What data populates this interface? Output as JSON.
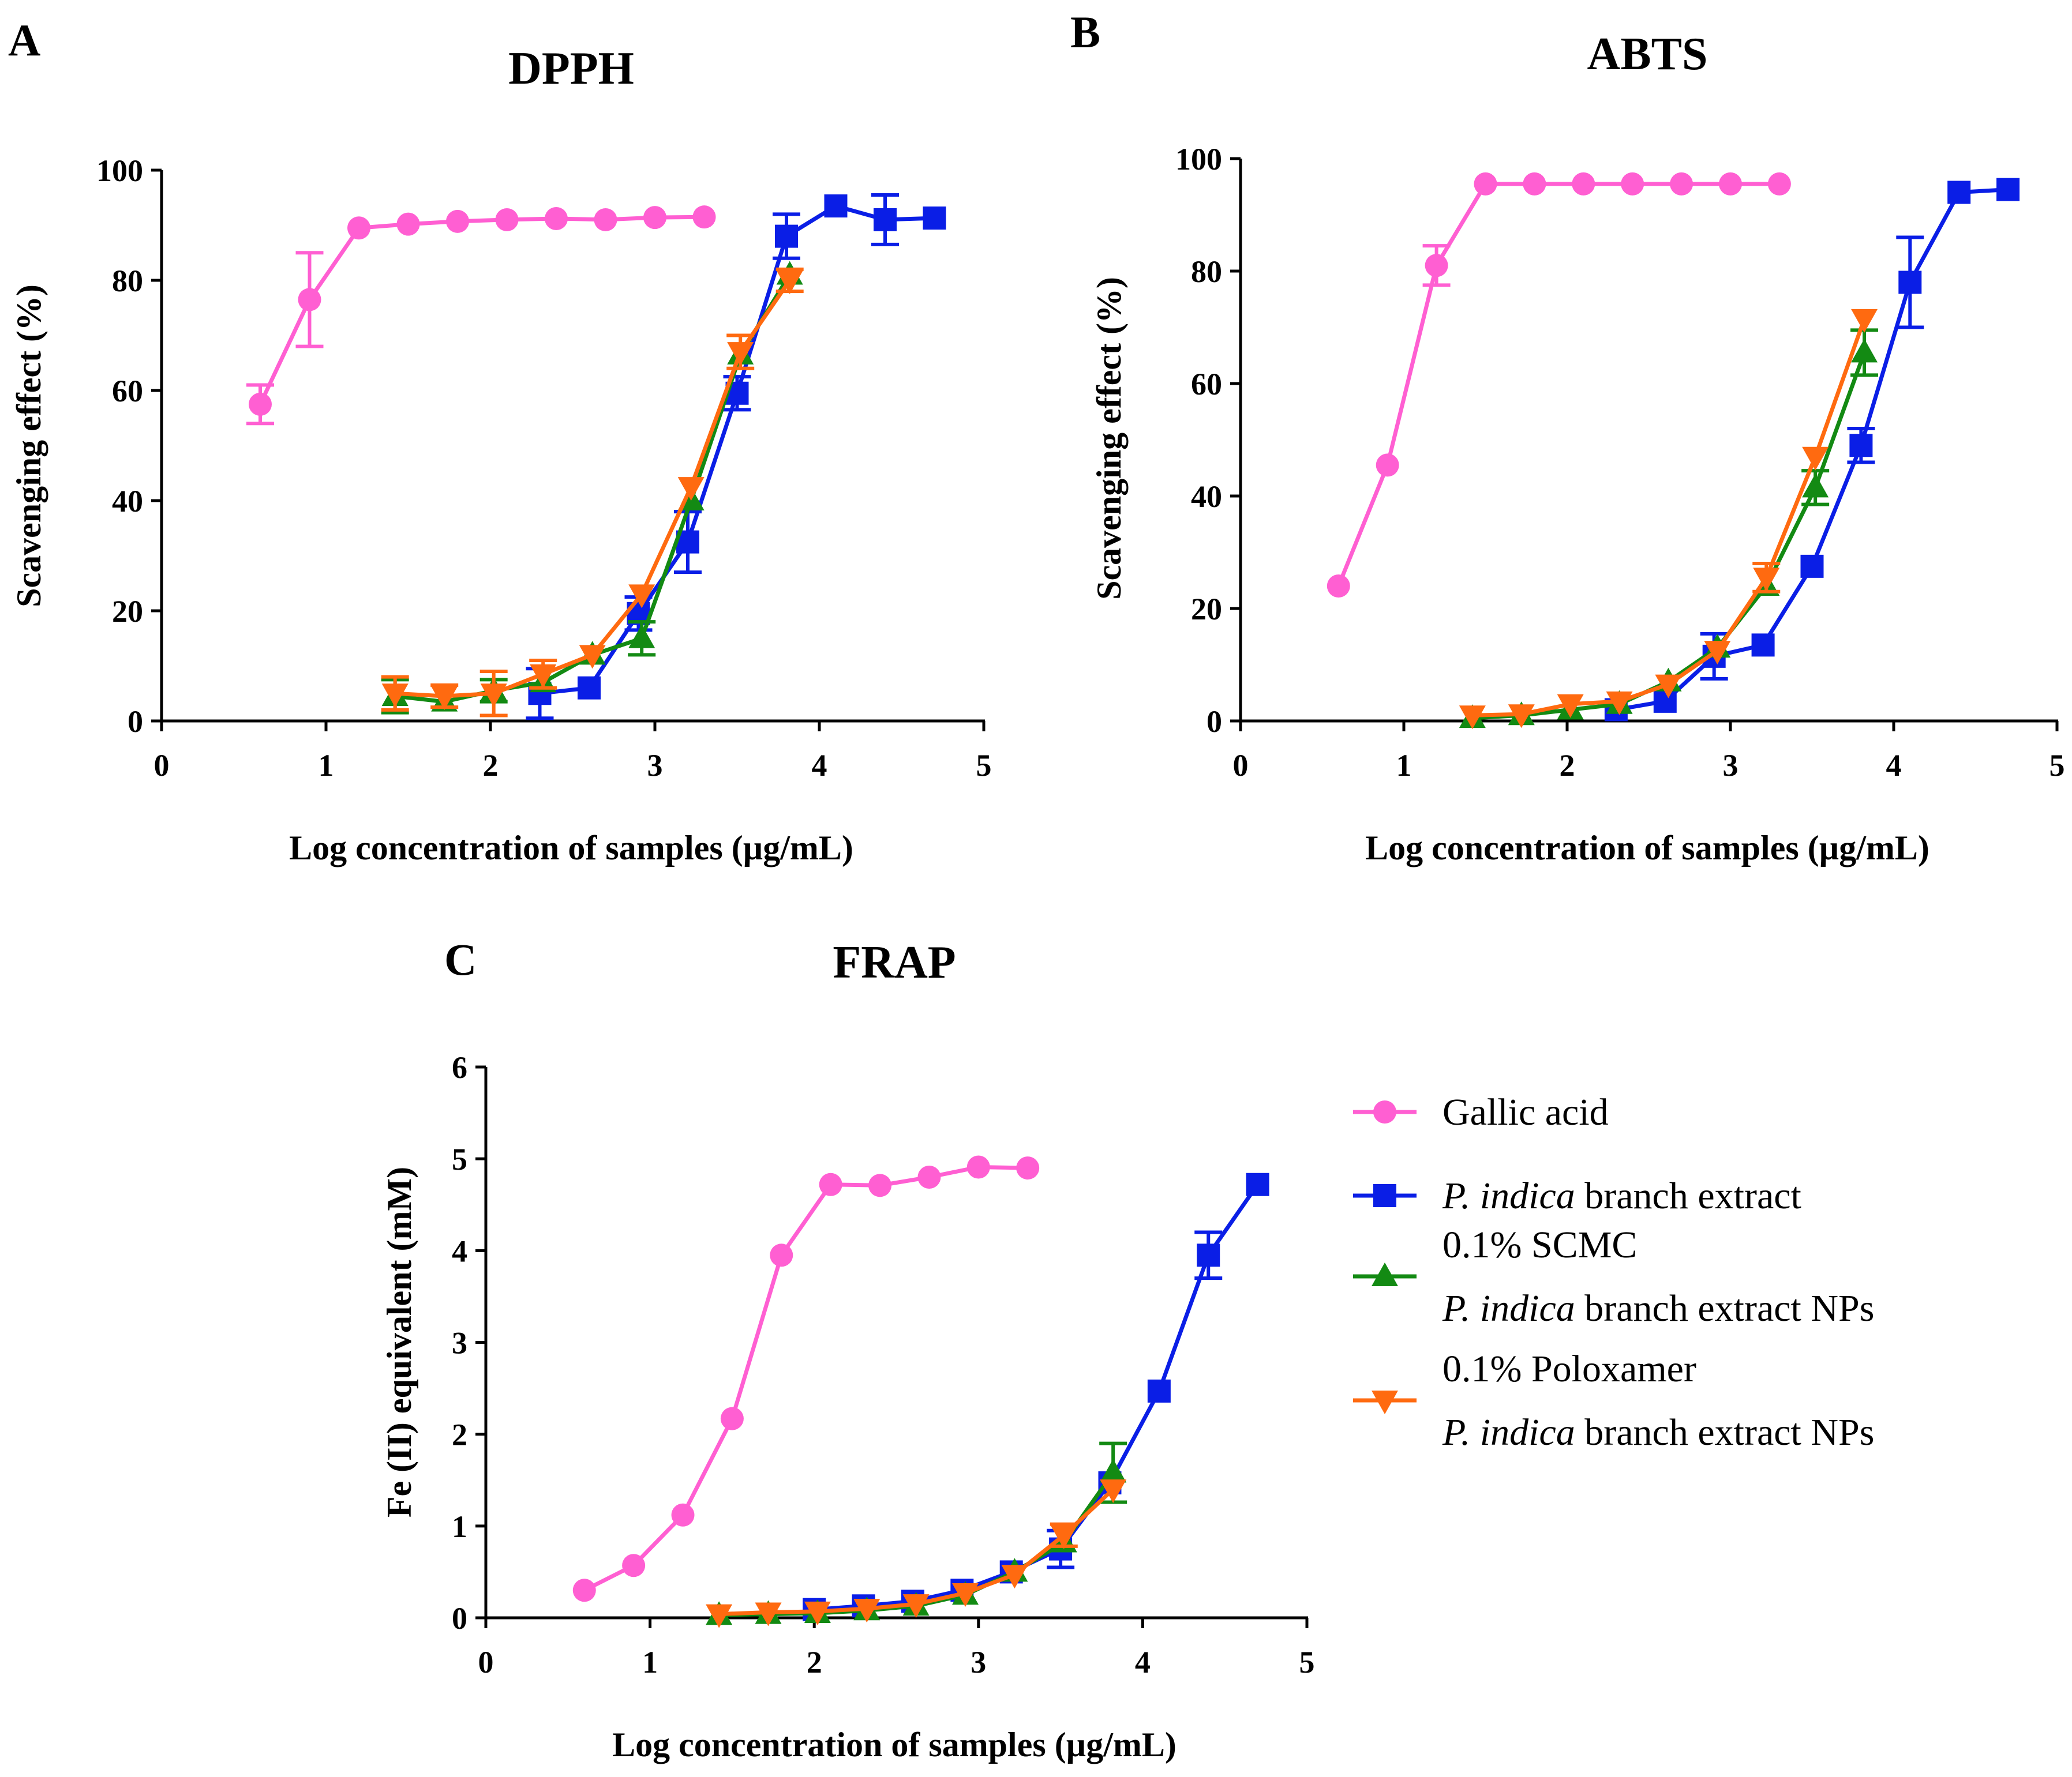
{
  "series_styles": [
    {
      "name": "Gallic acid",
      "color": "#ff5fd2",
      "marker": "circle"
    },
    {
      "name": "P. indica branch extract",
      "color": "#0a1ee6",
      "marker": "square"
    },
    {
      "name": "0.1% SCMC P. indica branch extract NPs",
      "color": "#138a13",
      "marker": "triangle-up"
    },
    {
      "name": "0.1% Poloxamer P. indica branch extract NPs",
      "color": "#ff6a10",
      "marker": "triangle-down"
    }
  ],
  "legend": {
    "items": [
      {
        "lines": [
          [
            {
              "text": "Gallic acid",
              "italic": false
            }
          ]
        ]
      },
      {
        "lines": [
          [
            {
              "text": "P. indica",
              "italic": true
            },
            {
              "text": " branch extract",
              "italic": false
            }
          ]
        ]
      },
      {
        "lines": [
          [
            {
              "text": "0.1% SCMC",
              "italic": false
            }
          ],
          [
            {
              "text": "P. indica",
              "italic": true
            },
            {
              "text": " branch extract NPs",
              "italic": false
            }
          ]
        ]
      },
      {
        "lines": [
          [
            {
              "text": "0.1% Poloxamer",
              "italic": false
            }
          ],
          [
            {
              "text": "P. indica",
              "italic": true
            },
            {
              "text": " branch extract NPs",
              "italic": false
            }
          ]
        ]
      }
    ]
  },
  "chart_data": [
    {
      "type": "line",
      "panel": "A",
      "title": "DPPH",
      "xlabel": "Log concentration of samples  (µg/mL)",
      "ylabel": "Scavenging effect (%)",
      "xlim": [
        0,
        5
      ],
      "ylim": [
        0,
        100
      ],
      "xticks": [
        0,
        1,
        2,
        3,
        4,
        5
      ],
      "yticks": [
        0,
        20,
        40,
        60,
        80,
        100
      ],
      "series": [
        {
          "name": "Gallic acid",
          "x": [
            0.6,
            0.9,
            1.2,
            1.5,
            1.8,
            2.1,
            2.4,
            2.7,
            3.0,
            3.3
          ],
          "y": [
            57.5,
            76.5,
            89.5,
            90.2,
            90.7,
            91.0,
            91.2,
            91.0,
            91.4,
            91.5
          ],
          "err": [
            3.5,
            8.5,
            0,
            0,
            0,
            0,
            0,
            0,
            0,
            0
          ]
        },
        {
          "name": "P. indica branch extract",
          "x": [
            2.3,
            2.6,
            2.9,
            3.2,
            3.5,
            3.8,
            4.1,
            4.4,
            4.7
          ],
          "y": [
            5.0,
            6.0,
            19.5,
            32.5,
            59.5,
            88.0,
            93.5,
            91.0,
            91.3
          ],
          "err": [
            4.5,
            0,
            3.0,
            5.5,
            3.0,
            4.0,
            0,
            4.5,
            0
          ]
        },
        {
          "name": "0.1% SCMC P. indica branch extract NPs",
          "x": [
            1.42,
            1.72,
            2.02,
            2.32,
            2.62,
            2.92,
            3.22,
            3.52,
            3.82
          ],
          "y": [
            4.5,
            3.5,
            5.5,
            7.0,
            12.0,
            15.0,
            40.0,
            66.5,
            81.0
          ],
          "err": [
            3.0,
            0,
            2.0,
            0,
            0,
            3.0,
            0,
            0,
            0
          ]
        },
        {
          "name": "0.1% Poloxamer P. indica branch extract NPs",
          "x": [
            1.42,
            1.72,
            2.02,
            2.32,
            2.62,
            2.92,
            3.22,
            3.52,
            3.82
          ],
          "y": [
            5.0,
            4.5,
            5.0,
            8.5,
            12.0,
            23.0,
            42.5,
            67.0,
            80.0
          ],
          "err": [
            3.0,
            2.0,
            4.0,
            2.5,
            0,
            0,
            0,
            3.0,
            2.0
          ]
        }
      ]
    },
    {
      "type": "line",
      "panel": "B",
      "title": "ABTS",
      "xlabel": "Log concentration of samples  (µg/mL)",
      "ylabel": "Scavenging effect (%)",
      "xlim": [
        0,
        5
      ],
      "ylim": [
        0,
        100
      ],
      "xticks": [
        0,
        1,
        2,
        3,
        4,
        5
      ],
      "yticks": [
        0,
        20,
        40,
        60,
        80,
        100
      ],
      "series": [
        {
          "name": "Gallic acid",
          "x": [
            0.6,
            0.9,
            1.2,
            1.5,
            1.8,
            2.1,
            2.4,
            2.7,
            3.0,
            3.3
          ],
          "y": [
            24.0,
            45.5,
            81.0,
            95.5,
            95.5,
            95.5,
            95.5,
            95.5,
            95.5,
            95.5
          ],
          "err": [
            0,
            0,
            3.5,
            0,
            0,
            0,
            0,
            0,
            0,
            0
          ]
        },
        {
          "name": "P. indica branch extract",
          "x": [
            2.3,
            2.6,
            2.9,
            3.2,
            3.5,
            3.8,
            4.1,
            4.4,
            4.7
          ],
          "y": [
            2.0,
            3.5,
            11.5,
            13.5,
            27.5,
            49.0,
            78.0,
            94.0,
            94.5
          ],
          "err": [
            0,
            0,
            4.0,
            0,
            0,
            3.0,
            8.0,
            0,
            0
          ]
        },
        {
          "name": "0.1% SCMC P. indica branch extract NPs",
          "x": [
            1.42,
            1.72,
            2.02,
            2.32,
            2.62,
            2.92,
            3.22,
            3.52,
            3.82
          ],
          "y": [
            0.5,
            1.0,
            2.0,
            3.0,
            7.0,
            13.0,
            24.0,
            41.5,
            65.5
          ],
          "err": [
            0,
            0,
            0,
            0,
            0,
            0,
            0,
            3.0,
            4.0
          ]
        },
        {
          "name": "0.1% Poloxamer P. indica branch extract NPs",
          "x": [
            1.42,
            1.72,
            2.02,
            2.32,
            2.62,
            2.92,
            3.22,
            3.52,
            3.82
          ],
          "y": [
            1.0,
            1.2,
            3.0,
            3.5,
            6.5,
            12.5,
            25.5,
            47.0,
            71.5
          ],
          "err": [
            0,
            0,
            0,
            0,
            0,
            0,
            2.5,
            0,
            0
          ]
        }
      ]
    },
    {
      "type": "line",
      "panel": "C",
      "title": "FRAP",
      "xlabel": "Log concentration of samples  (µg/mL)",
      "ylabel": "Fe (II) equivalent (mM)",
      "xlim": [
        0,
        5
      ],
      "ylim": [
        0,
        6
      ],
      "xticks": [
        0,
        1,
        2,
        3,
        4,
        5
      ],
      "yticks": [
        0,
        1,
        2,
        3,
        4,
        5,
        6
      ],
      "series": [
        {
          "name": "Gallic acid",
          "x": [
            0.6,
            0.9,
            1.2,
            1.5,
            1.8,
            2.1,
            2.4,
            2.7,
            3.0,
            3.3
          ],
          "y": [
            0.3,
            0.57,
            1.12,
            2.17,
            3.95,
            4.72,
            4.71,
            4.8,
            4.91,
            4.9
          ],
          "err": [
            0,
            0,
            0,
            0,
            0,
            0,
            0,
            0,
            0,
            0
          ]
        },
        {
          "name": "P. indica branch extract",
          "x": [
            2.0,
            2.3,
            2.6,
            2.9,
            3.2,
            3.5,
            3.8,
            4.1,
            4.4,
            4.7
          ],
          "y": [
            0.09,
            0.13,
            0.18,
            0.3,
            0.5,
            0.75,
            1.47,
            2.47,
            3.95,
            4.72
          ],
          "err": [
            0,
            0,
            0,
            0,
            0,
            0.2,
            0,
            0,
            0.25,
            0
          ]
        },
        {
          "name": "0.1% SCMC P. indica branch extract NPs",
          "x": [
            1.42,
            1.72,
            2.02,
            2.32,
            2.62,
            2.92,
            3.22,
            3.52,
            3.82
          ],
          "y": [
            0.03,
            0.04,
            0.05,
            0.08,
            0.13,
            0.25,
            0.5,
            0.82,
            1.58
          ],
          "err": [
            0,
            0,
            0,
            0,
            0,
            0,
            0,
            0,
            0.32
          ]
        },
        {
          "name": "0.1% Poloxamer P. indica branch extract NPs",
          "x": [
            1.42,
            1.72,
            2.02,
            2.32,
            2.62,
            2.92,
            3.22,
            3.52,
            3.82
          ],
          "y": [
            0.04,
            0.06,
            0.07,
            0.1,
            0.15,
            0.27,
            0.47,
            0.9,
            1.4
          ],
          "err": [
            0,
            0,
            0,
            0,
            0,
            0,
            0,
            0.12,
            0
          ]
        }
      ]
    }
  ]
}
